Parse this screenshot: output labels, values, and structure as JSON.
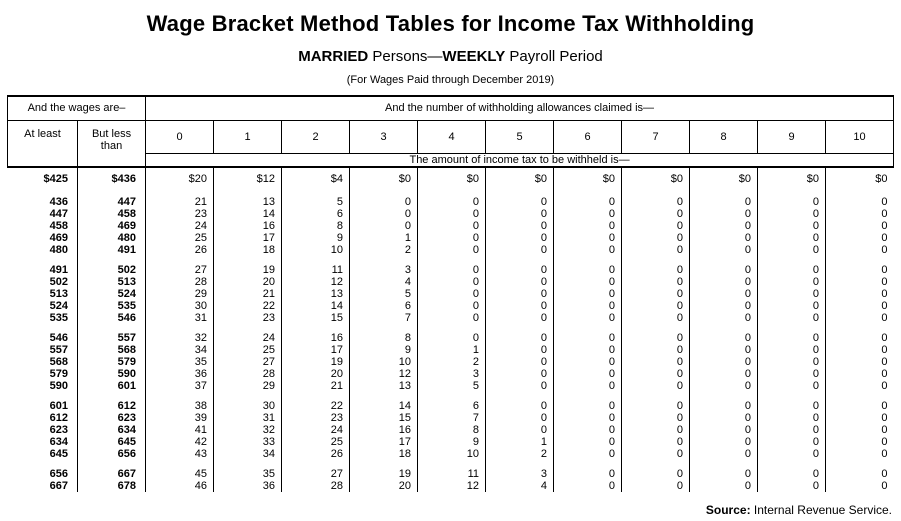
{
  "page": {
    "title": "Wage Bracket Method Tables for Income Tax Withholding",
    "subtitle_married": "MARRIED",
    "subtitle_mid": " Persons—",
    "subtitle_weekly": "WEEKLY",
    "subtitle_end": " Payroll Period",
    "note": "(For Wages Paid through December 2019)"
  },
  "table": {
    "wages_header": "And the wages are–",
    "allowances_header": "And the number of withholding allowances claimed is—",
    "at_least_label": "At least",
    "but_less_label": "But less than",
    "allowance_columns": [
      "0",
      "1",
      "2",
      "3",
      "4",
      "5",
      "6",
      "7",
      "8",
      "9",
      "10"
    ],
    "amount_header": "The amount of income tax to be withheld is—",
    "groups": [
      [
        [
          "$425",
          "$436",
          "$20",
          "$12",
          "$4",
          "$0",
          "$0",
          "$0",
          "$0",
          "$0",
          "$0",
          "$0",
          "$0"
        ]
      ],
      [
        [
          "436",
          "447",
          "21",
          "13",
          "5",
          "0",
          "0",
          "0",
          "0",
          "0",
          "0",
          "0",
          "0"
        ],
        [
          "447",
          "458",
          "23",
          "14",
          "6",
          "0",
          "0",
          "0",
          "0",
          "0",
          "0",
          "0",
          "0"
        ],
        [
          "458",
          "469",
          "24",
          "16",
          "8",
          "0",
          "0",
          "0",
          "0",
          "0",
          "0",
          "0",
          "0"
        ],
        [
          "469",
          "480",
          "25",
          "17",
          "9",
          "1",
          "0",
          "0",
          "0",
          "0",
          "0",
          "0",
          "0"
        ],
        [
          "480",
          "491",
          "26",
          "18",
          "10",
          "2",
          "0",
          "0",
          "0",
          "0",
          "0",
          "0",
          "0"
        ]
      ],
      [
        [
          "491",
          "502",
          "27",
          "19",
          "11",
          "3",
          "0",
          "0",
          "0",
          "0",
          "0",
          "0",
          "0"
        ],
        [
          "502",
          "513",
          "28",
          "20",
          "12",
          "4",
          "0",
          "0",
          "0",
          "0",
          "0",
          "0",
          "0"
        ],
        [
          "513",
          "524",
          "29",
          "21",
          "13",
          "5",
          "0",
          "0",
          "0",
          "0",
          "0",
          "0",
          "0"
        ],
        [
          "524",
          "535",
          "30",
          "22",
          "14",
          "6",
          "0",
          "0",
          "0",
          "0",
          "0",
          "0",
          "0"
        ],
        [
          "535",
          "546",
          "31",
          "23",
          "15",
          "7",
          "0",
          "0",
          "0",
          "0",
          "0",
          "0",
          "0"
        ]
      ],
      [
        [
          "546",
          "557",
          "32",
          "24",
          "16",
          "8",
          "0",
          "0",
          "0",
          "0",
          "0",
          "0",
          "0"
        ],
        [
          "557",
          "568",
          "34",
          "25",
          "17",
          "9",
          "1",
          "0",
          "0",
          "0",
          "0",
          "0",
          "0"
        ],
        [
          "568",
          "579",
          "35",
          "27",
          "19",
          "10",
          "2",
          "0",
          "0",
          "0",
          "0",
          "0",
          "0"
        ],
        [
          "579",
          "590",
          "36",
          "28",
          "20",
          "12",
          "3",
          "0",
          "0",
          "0",
          "0",
          "0",
          "0"
        ],
        [
          "590",
          "601",
          "37",
          "29",
          "21",
          "13",
          "5",
          "0",
          "0",
          "0",
          "0",
          "0",
          "0"
        ]
      ],
      [
        [
          "601",
          "612",
          "38",
          "30",
          "22",
          "14",
          "6",
          "0",
          "0",
          "0",
          "0",
          "0",
          "0"
        ],
        [
          "612",
          "623",
          "39",
          "31",
          "23",
          "15",
          "7",
          "0",
          "0",
          "0",
          "0",
          "0",
          "0"
        ],
        [
          "623",
          "634",
          "41",
          "32",
          "24",
          "16",
          "8",
          "0",
          "0",
          "0",
          "0",
          "0",
          "0"
        ],
        [
          "634",
          "645",
          "42",
          "33",
          "25",
          "17",
          "9",
          "1",
          "0",
          "0",
          "0",
          "0",
          "0"
        ],
        [
          "645",
          "656",
          "43",
          "34",
          "26",
          "18",
          "10",
          "2",
          "0",
          "0",
          "0",
          "0",
          "0"
        ]
      ],
      [
        [
          "656",
          "667",
          "45",
          "35",
          "27",
          "19",
          "11",
          "3",
          "0",
          "0",
          "0",
          "0",
          "0"
        ],
        [
          "667",
          "678",
          "46",
          "36",
          "28",
          "20",
          "12",
          "4",
          "0",
          "0",
          "0",
          "0",
          "0"
        ]
      ]
    ]
  },
  "footer": {
    "source_label": "Source:",
    "source_text": " Internal Revenue Service."
  }
}
